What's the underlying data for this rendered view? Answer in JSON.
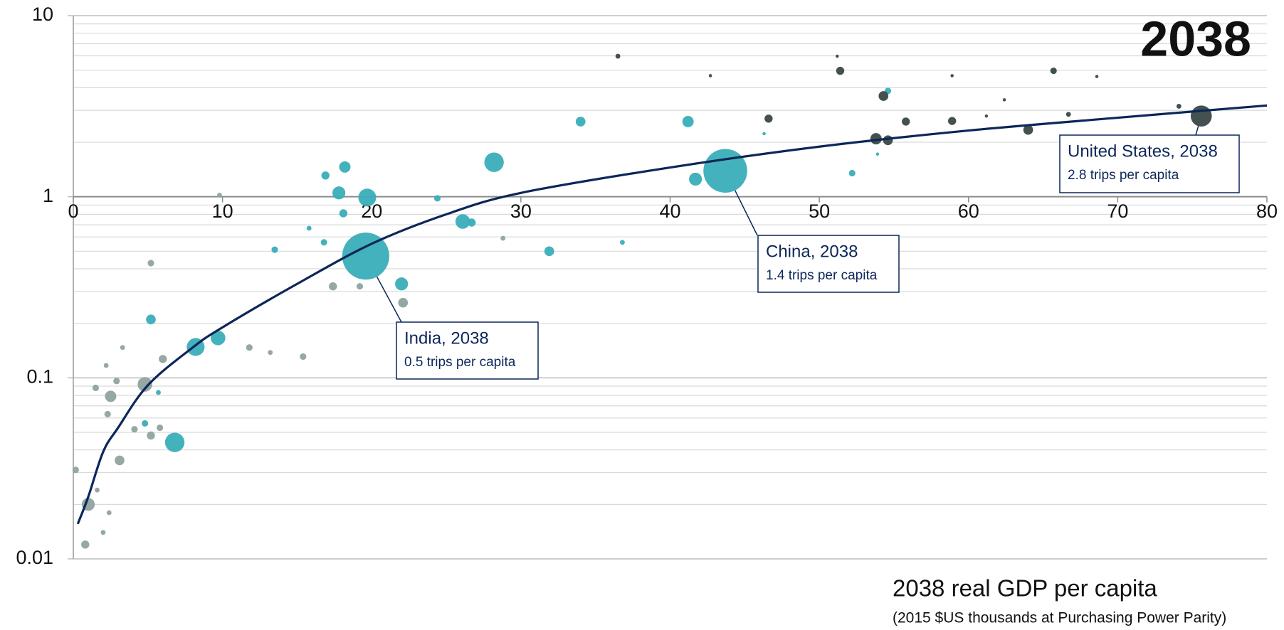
{
  "chart_data": {
    "type": "scatter",
    "title": "2038",
    "x_label": "2038 real GDP per capita",
    "x_sublabel": "(2015 $US thousands at Purchasing Power Parity)",
    "xlim": [
      0,
      80
    ],
    "xticks": [
      0,
      10,
      20,
      30,
      40,
      50,
      60,
      70,
      80
    ],
    "ylim": [
      0.01,
      10
    ],
    "yticks": [
      0.01,
      0.1,
      1,
      10
    ],
    "minor_yticks": [
      0.02,
      0.03,
      0.04,
      0.05,
      0.06,
      0.07,
      0.08,
      0.09,
      0.2,
      0.3,
      0.4,
      0.5,
      0.6,
      0.7,
      0.8,
      0.9,
      2,
      3,
      4,
      5,
      6,
      7,
      8,
      9
    ],
    "log_y": true,
    "grid": true,
    "series": [
      {
        "color": "#3aaeb8",
        "x": [
          19.6,
          43.7,
          28.2,
          19.7,
          8.2,
          9.7,
          6.8,
          26.1,
          26.7,
          17.8,
          18.2,
          16.9,
          22.0,
          31.9,
          34.0,
          41.2,
          41.7,
          5.2,
          18.1,
          16.8,
          13.5,
          24.4,
          36.8,
          52.2,
          54.6,
          4.8,
          5.7,
          53.9,
          46.3,
          15.8
        ],
        "y": [
          0.47,
          1.39,
          1.55,
          0.99,
          0.148,
          0.166,
          0.044,
          0.73,
          0.72,
          1.05,
          1.46,
          1.31,
          0.33,
          0.5,
          2.6,
          2.6,
          1.25,
          0.21,
          0.81,
          0.56,
          0.51,
          0.98,
          0.56,
          1.35,
          3.84,
          0.056,
          0.083,
          1.72,
          2.23,
          0.67
        ],
        "sizes": [
          29,
          27,
          12,
          11,
          11,
          9,
          12,
          9,
          5,
          8,
          7,
          5,
          8,
          6,
          6,
          7,
          8,
          6,
          5,
          4,
          4,
          4,
          3,
          4,
          4,
          4,
          3,
          2,
          2,
          3
        ]
      },
      {
        "color": "#8fa3a1",
        "x": [
          4.8,
          2.5,
          1.0,
          3.1,
          22.1,
          17.4,
          19.2,
          15.4,
          11.8,
          6.0,
          2.3,
          1.5,
          2.9,
          5.2,
          0.8,
          0.16,
          5.8,
          1.6,
          2.4,
          2.0,
          4.1,
          5.2,
          3.3,
          2.2,
          9.8,
          13.2,
          28.8
        ],
        "y": [
          0.092,
          0.079,
          0.02,
          0.035,
          0.26,
          0.32,
          0.32,
          0.131,
          0.147,
          0.127,
          0.063,
          0.088,
          0.096,
          0.048,
          0.012,
          0.031,
          0.053,
          0.024,
          0.018,
          0.014,
          0.052,
          0.43,
          0.147,
          0.117,
          1.02,
          0.138,
          0.59
        ],
        "sizes": [
          9,
          7,
          8,
          6,
          6,
          5,
          4,
          4,
          4,
          5,
          4,
          4,
          4,
          5,
          5,
          4,
          4,
          3,
          3,
          3,
          4,
          4,
          3,
          3,
          3,
          3,
          3
        ]
      },
      {
        "color": "#3b4848",
        "x": [
          75.6,
          51.4,
          54.3,
          55.8,
          53.8,
          54.6,
          46.6,
          58.9,
          64.0,
          65.7,
          36.5,
          51.2,
          42.7,
          68.6,
          58.9,
          62.4,
          66.7,
          74.1,
          61.2
        ],
        "y": [
          2.79,
          4.96,
          3.6,
          2.6,
          2.09,
          2.05,
          2.7,
          2.62,
          2.34,
          4.96,
          5.97,
          5.97,
          4.66,
          4.61,
          4.66,
          3.43,
          2.85,
          3.16,
          2.79
        ],
        "sizes": [
          13,
          5,
          6,
          5,
          7,
          6,
          5,
          5,
          6,
          4,
          3,
          2,
          2,
          2,
          2,
          2,
          3,
          3,
          2
        ]
      }
    ],
    "trend": {
      "color": "#0c2758",
      "x": [
        0.3,
        1,
        2,
        3,
        5,
        8,
        10,
        15,
        20,
        25,
        30,
        40,
        50,
        60,
        70,
        80
      ],
      "y": [
        0.0156,
        0.022,
        0.039,
        0.053,
        0.091,
        0.147,
        0.19,
        0.33,
        0.55,
        0.8,
        1.05,
        1.45,
        1.89,
        2.32,
        2.73,
        3.19
      ]
    },
    "annotations": [
      {
        "title": "India, 2038",
        "text": "0.5 trips per capita"
      },
      {
        "title": "China, 2038",
        "text": "1.4 trips per capita"
      },
      {
        "title": "United States, 2038",
        "text": "2.8 trips per capita"
      }
    ]
  }
}
